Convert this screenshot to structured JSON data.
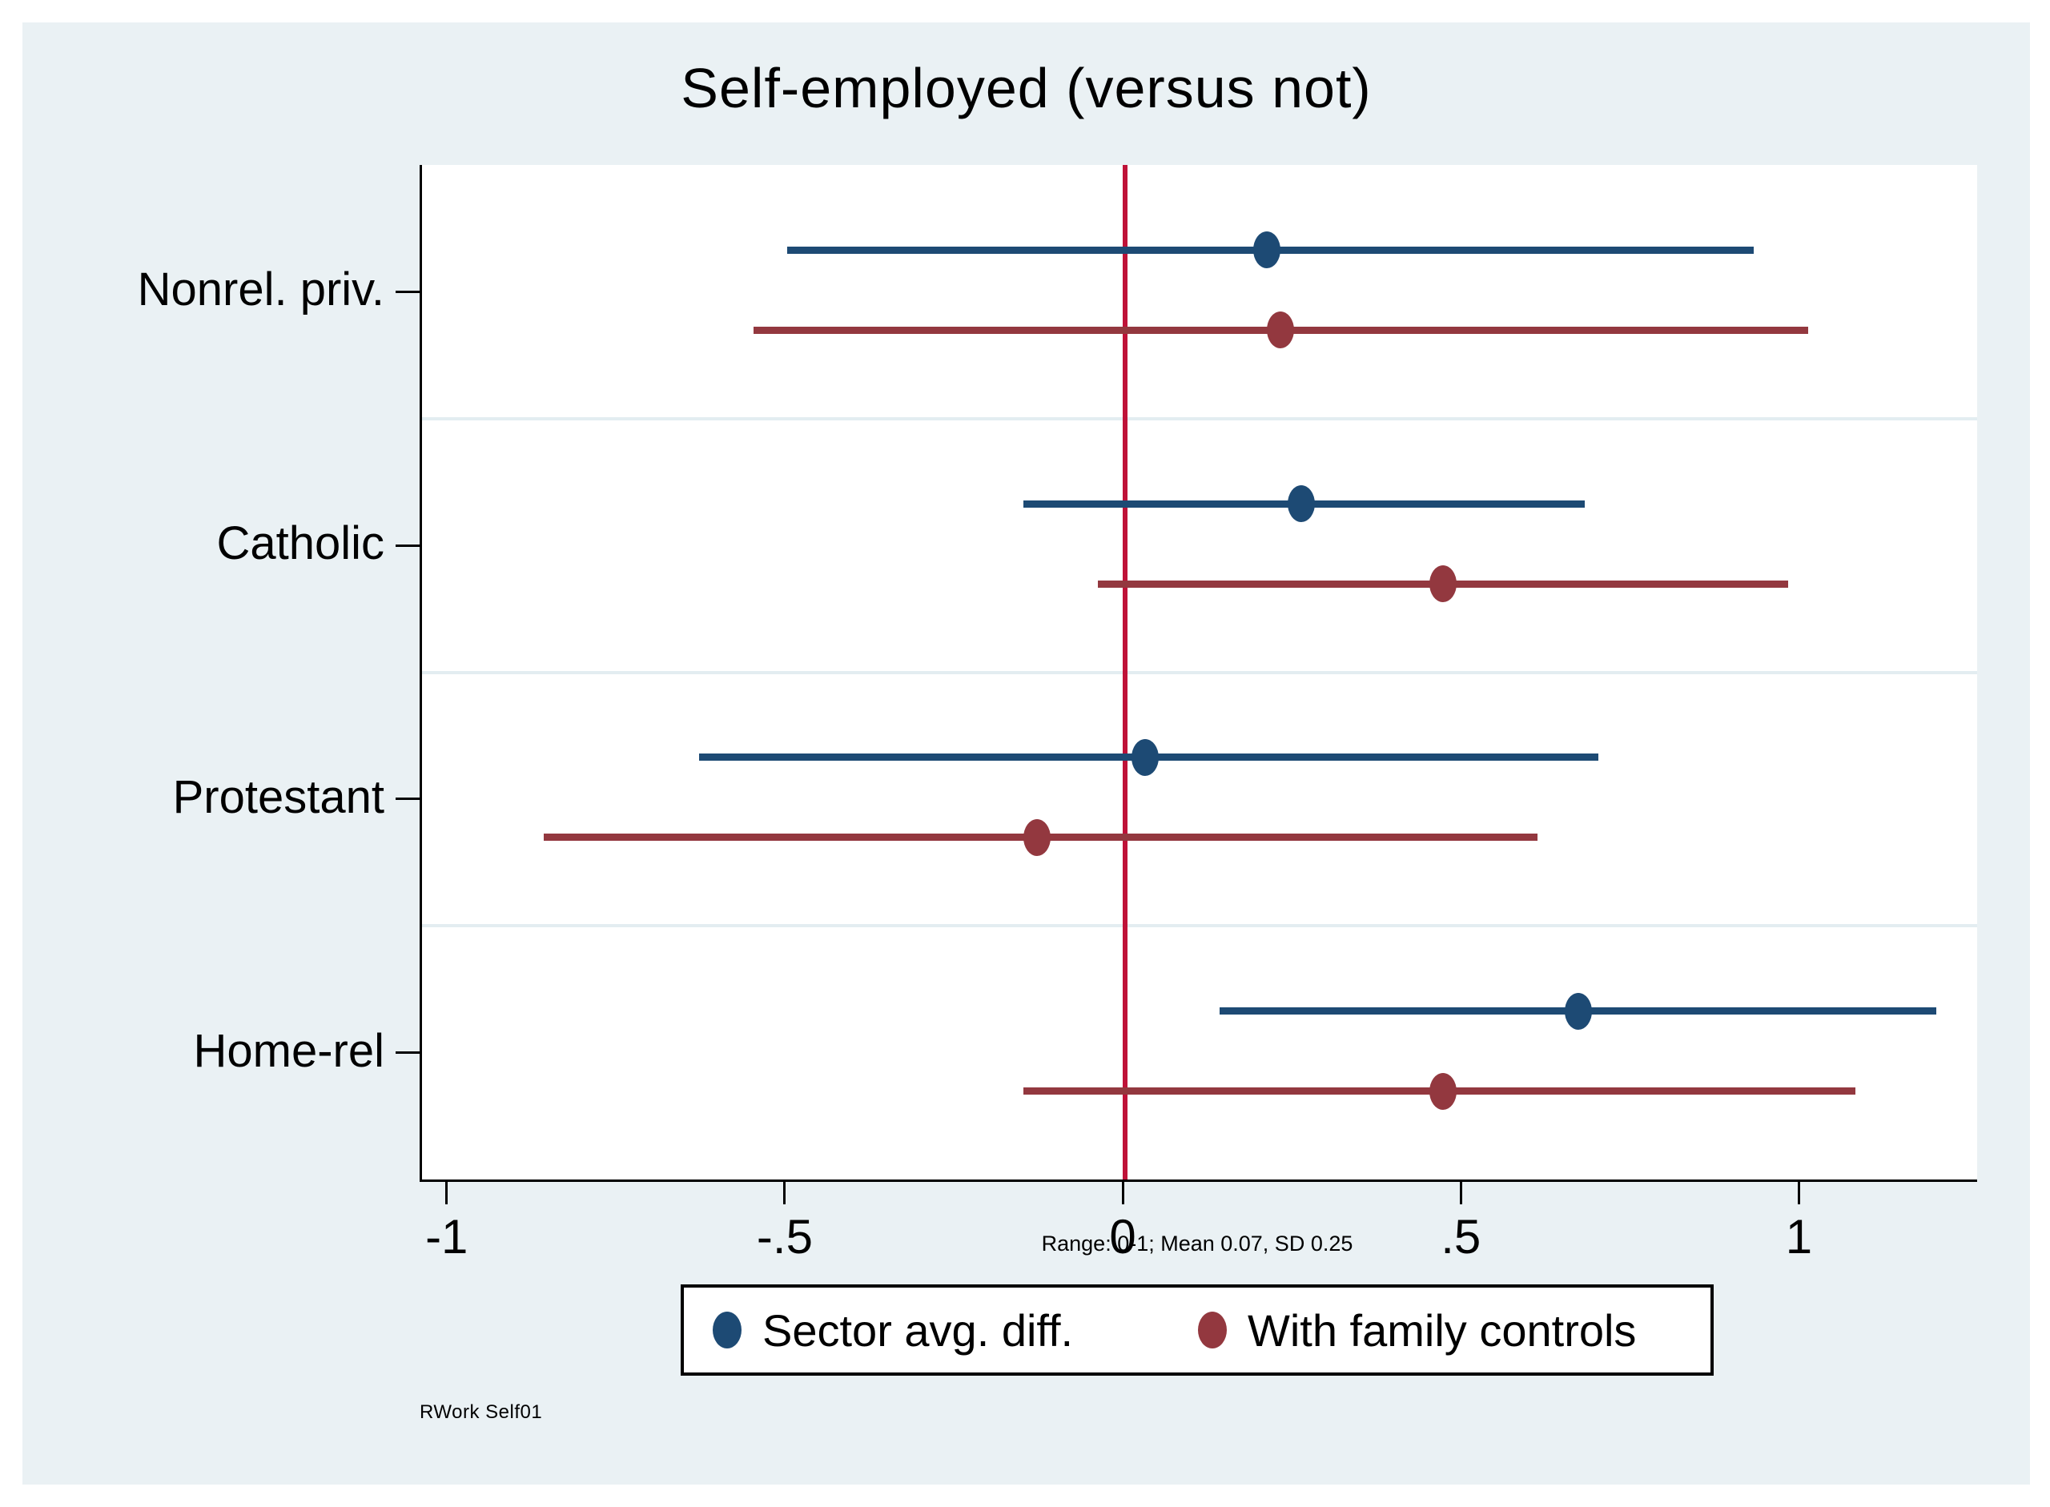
{
  "chart_data": {
    "type": "scatter",
    "subtype": "dot-plot-with-confidence-intervals",
    "title": "Self-employed (versus not)",
    "categories": [
      "Nonrel. priv.",
      "Catholic",
      "Protestant",
      "Home-rel"
    ],
    "series": [
      {
        "name": "Sector avg. diff.",
        "color": "#1d4a74",
        "points": [
          {
            "category": "Nonrel. priv.",
            "estimate": 0.21,
            "ci_low": -0.5,
            "ci_high": 0.93
          },
          {
            "category": "Catholic",
            "estimate": 0.26,
            "ci_low": -0.15,
            "ci_high": 0.68
          },
          {
            "category": "Protestant",
            "estimate": 0.03,
            "ci_low": -0.63,
            "ci_high": 0.7
          },
          {
            "category": "Home-rel",
            "estimate": 0.67,
            "ci_low": 0.14,
            "ci_high": 1.2
          }
        ]
      },
      {
        "name": "With family controls",
        "color": "#93383f",
        "points": [
          {
            "category": "Nonrel. priv.",
            "estimate": 0.23,
            "ci_low": -0.55,
            "ci_high": 1.01
          },
          {
            "category": "Catholic",
            "estimate": 0.47,
            "ci_low": -0.04,
            "ci_high": 0.98
          },
          {
            "category": "Protestant",
            "estimate": -0.13,
            "ci_low": -0.86,
            "ci_high": 0.61
          },
          {
            "category": "Home-rel",
            "estimate": 0.47,
            "ci_low": -0.15,
            "ci_high": 1.08
          }
        ]
      }
    ],
    "x_ticks": [
      {
        "value": -1,
        "label": "-1"
      },
      {
        "value": -0.5,
        "label": "-.5"
      },
      {
        "value": 0,
        "label": "0"
      },
      {
        "value": 0.5,
        "label": ".5"
      },
      {
        "value": 1,
        "label": "1"
      }
    ],
    "xlim": [
      -1.04,
      1.26
    ],
    "zero_line": {
      "value": 0,
      "color": "#bf1238",
      "width": 6
    },
    "grid": "between-categories",
    "legend_position": "bottom-center",
    "note": "Range: 0-1; Mean 0.07, SD 0.25",
    "watermark": "RWork Self01",
    "colors": {
      "graph_background": "#eaf1f4",
      "plot_background": "#ffffff",
      "grid_line": "#e3edf1",
      "axis": "#000000",
      "text": "#000000"
    }
  }
}
